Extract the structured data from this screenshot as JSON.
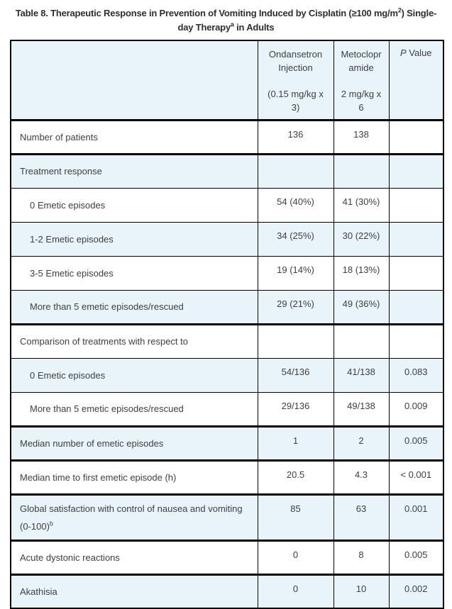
{
  "title": {
    "line1_text": "Table 8. Therapeutic Response in Prevention of Vomiting Induced by Cisplatin (≥100 mg/m",
    "line1_sup": "2",
    "line1_end": ") Single-",
    "line2_text": "day Therapy",
    "line2_sup": "a",
    "line2_end": " in Adults"
  },
  "table": {
    "header": {
      "row_label_col": "",
      "ondansetron": {
        "name": "Ondansetron Injection",
        "dose": "(0.15 mg/kg x 3)"
      },
      "metoclopramide": {
        "name": "Metoclopramide",
        "dose": "2 mg/kg x 6"
      },
      "p_value": {
        "italic": "P",
        "rest": "Value"
      }
    },
    "rows": [
      {
        "label": "Number of patients",
        "ondansetron": "136",
        "metoclopramide": "138",
        "p_value": ""
      },
      {
        "label": "Treatment response",
        "ondansetron": "",
        "metoclopramide": "",
        "p_value": ""
      },
      {
        "label": "0 Emetic episodes",
        "ondansetron": "54 (40%)",
        "metoclopramide": "41 (30%)",
        "p_value": ""
      },
      {
        "label": "1-2 Emetic episodes",
        "ondansetron": "34 (25%)",
        "metoclopramide": "30 (22%)",
        "p_value": ""
      },
      {
        "label": "3-5 Emetic episodes",
        "ondansetron": "19 (14%)",
        "metoclopramide": "18 (13%)",
        "p_value": ""
      },
      {
        "label": "More than 5 emetic episodes/rescued",
        "ondansetron": "29 (21%)",
        "metoclopramide": "49 (36%)",
        "p_value": ""
      },
      {
        "label": "Comparison of treatments with respect to",
        "ondansetron": "",
        "metoclopramide": "",
        "p_value": ""
      },
      {
        "label": "0 Emetic episodes",
        "ondansetron": "54/136",
        "metoclopramide": "41/138",
        "p_value": "0.083"
      },
      {
        "label": "More than 5 emetic episodes/rescued",
        "ondansetron": "29/136",
        "metoclopramide": "49/138",
        "p_value": "0.009"
      },
      {
        "label": "Median number of emetic episodes",
        "ondansetron": "1",
        "metoclopramide": "2",
        "p_value": "0.005"
      },
      {
        "label": "Median time to first emetic episode (h)",
        "ondansetron": "20.5",
        "metoclopramide": "4.3",
        "p_value": "< 0.001"
      },
      {
        "label": "Global satisfaction with control of nausea and vomiting (0-100)",
        "label_sup": "b",
        "ondansetron": "85",
        "metoclopramide": "63",
        "p_value": "0.001"
      },
      {
        "label": "Acute dystonic reactions",
        "ondansetron": "0",
        "metoclopramide": "8",
        "p_value": "0.005"
      },
      {
        "label": "Akathisia",
        "ondansetron": "0",
        "metoclopramide": "10",
        "p_value": "0.002"
      }
    ]
  },
  "colors": {
    "row_alt_blue": "#e8f3fa",
    "border": "#000000",
    "body_text": "#404040",
    "title_text": "#2e2e2e"
  }
}
